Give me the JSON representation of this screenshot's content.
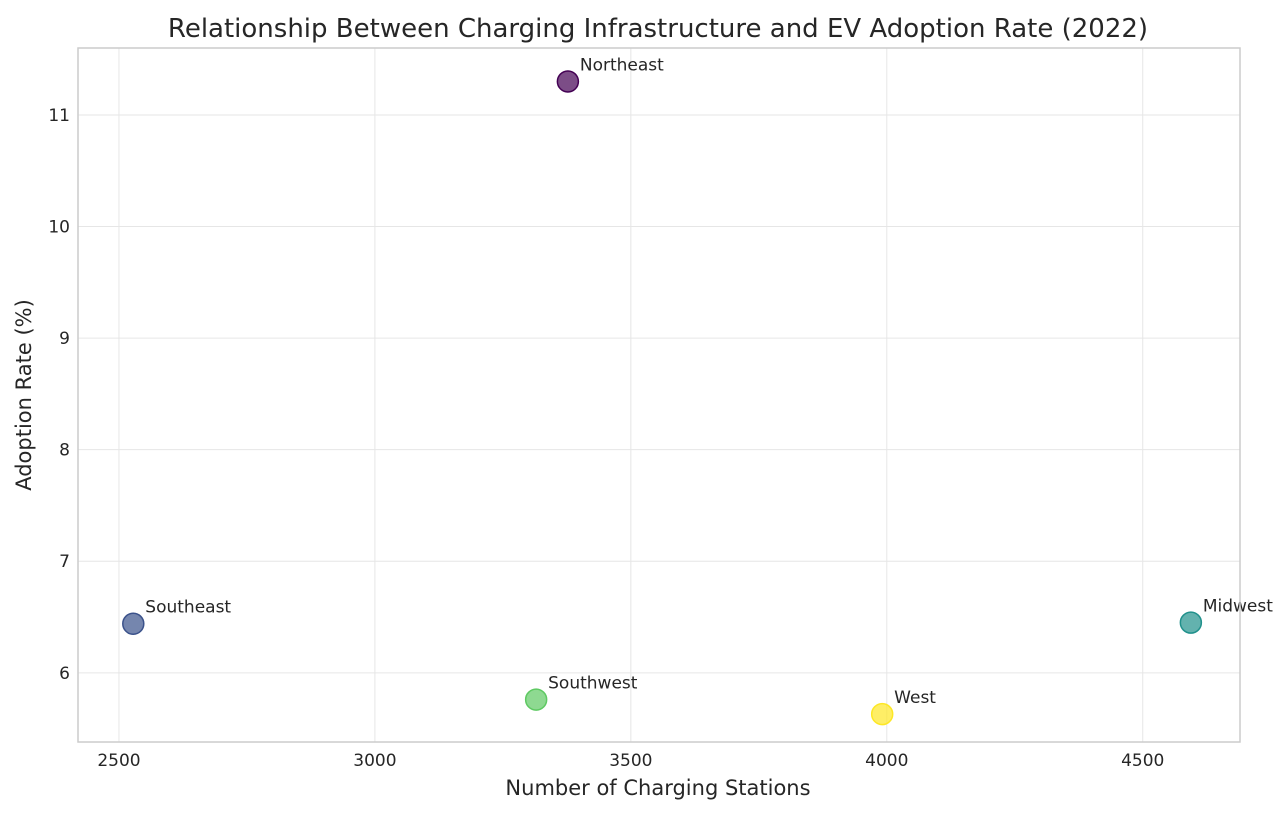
{
  "chart_data": {
    "type": "scatter",
    "title": "Relationship Between Charging Infrastructure and EV Adoption Rate (2022)",
    "xlabel": "Number of Charging Stations",
    "ylabel": "Adoption Rate (%)",
    "xlim": [
      2420,
      4690
    ],
    "ylim": [
      5.38,
      11.6
    ],
    "xticks": [
      2500,
      3000,
      3500,
      4000,
      4500
    ],
    "yticks": [
      6,
      7,
      8,
      9,
      10,
      11
    ],
    "grid": true,
    "points": [
      {
        "label": "Northeast",
        "x": 3377,
        "y": 11.3,
        "color": "#440154"
      },
      {
        "label": "Southeast",
        "x": 2528,
        "y": 6.44,
        "color": "#3b528b"
      },
      {
        "label": "Midwest",
        "x": 4594,
        "y": 6.45,
        "color": "#21918c"
      },
      {
        "label": "Southwest",
        "x": 3315,
        "y": 5.76,
        "color": "#5ec962"
      },
      {
        "label": "West",
        "x": 3991,
        "y": 5.63,
        "color": "#fde725"
      }
    ]
  }
}
